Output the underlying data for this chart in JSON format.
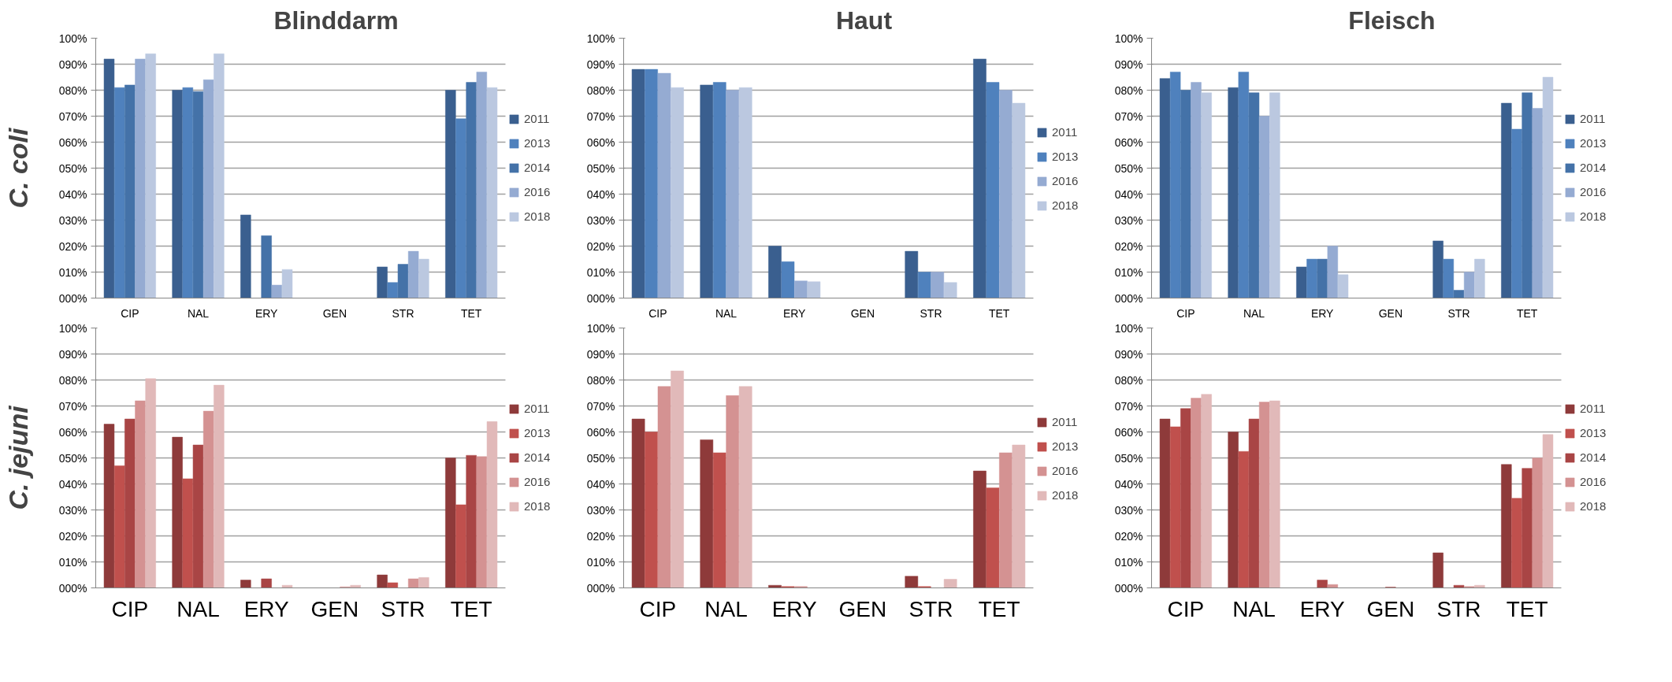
{
  "chart_data": [
    {
      "type": "bar",
      "title": "Blinddarm",
      "ylabel": "C. coli",
      "categories": [
        "CIP",
        "NAL",
        "ERY",
        "GEN",
        "STR",
        "TET"
      ],
      "ylim": [
        0,
        100
      ],
      "yticks": [
        {
          "value": 0,
          "label": "000%"
        },
        {
          "value": 10,
          "label": "010%"
        },
        {
          "value": 20,
          "label": "020%"
        },
        {
          "value": 30,
          "label": "030%"
        },
        {
          "value": 40,
          "label": "040%"
        },
        {
          "value": 50,
          "label": "050%"
        },
        {
          "value": 60,
          "label": "060%"
        },
        {
          "value": 70,
          "label": "070%"
        },
        {
          "value": 80,
          "label": "080%"
        },
        {
          "value": 90,
          "label": "090%"
        },
        {
          "value": 100,
          "label": "100%"
        }
      ],
      "grid": "y",
      "legend": "right",
      "series": [
        {
          "name": "2011",
          "color": "#3a5f8f",
          "values": [
            92,
            80,
            32,
            0,
            12,
            80
          ]
        },
        {
          "name": "2013",
          "color": "#4f81bd",
          "values": [
            81,
            81,
            0,
            0,
            6,
            69
          ]
        },
        {
          "name": "2014",
          "color": "#4472a8",
          "values": [
            82,
            79.5,
            24,
            0,
            13,
            83
          ]
        },
        {
          "name": "2016",
          "color": "#95abd2",
          "values": [
            92,
            84,
            5,
            0,
            18,
            87
          ]
        },
        {
          "name": "2018",
          "color": "#bbc8e0",
          "values": [
            94,
            94,
            11,
            0,
            15,
            81
          ]
        }
      ]
    },
    {
      "type": "bar",
      "title": "Haut",
      "categories": [
        "CIP",
        "NAL",
        "ERY",
        "GEN",
        "STR",
        "TET"
      ],
      "ylim": [
        0,
        100
      ],
      "yticks": [
        {
          "value": 0,
          "label": "000%"
        },
        {
          "value": 10,
          "label": "010%"
        },
        {
          "value": 20,
          "label": "020%"
        },
        {
          "value": 30,
          "label": "030%"
        },
        {
          "value": 40,
          "label": "040%"
        },
        {
          "value": 50,
          "label": "050%"
        },
        {
          "value": 60,
          "label": "060%"
        },
        {
          "value": 70,
          "label": "070%"
        },
        {
          "value": 80,
          "label": "080%"
        },
        {
          "value": 90,
          "label": "090%"
        },
        {
          "value": 100,
          "label": "100%"
        }
      ],
      "grid": "y",
      "legend": "right",
      "series": [
        {
          "name": "2011",
          "color": "#3a5f8f",
          "values": [
            88,
            82,
            20,
            0,
            18,
            92
          ]
        },
        {
          "name": "2013",
          "color": "#4f81bd",
          "values": [
            88,
            83,
            14,
            0,
            10,
            83
          ]
        },
        {
          "name": "2016",
          "color": "#95abd2",
          "values": [
            86.5,
            80,
            6.6,
            0,
            10,
            80
          ]
        },
        {
          "name": "2018",
          "color": "#bbc8e0",
          "values": [
            81,
            81,
            6.3,
            0,
            6,
            75
          ]
        }
      ]
    },
    {
      "type": "bar",
      "title": "Fleisch",
      "categories": [
        "CIP",
        "NAL",
        "ERY",
        "GEN",
        "STR",
        "TET"
      ],
      "ylim": [
        0,
        100
      ],
      "yticks": [
        {
          "value": 0,
          "label": "000%"
        },
        {
          "value": 10,
          "label": "010%"
        },
        {
          "value": 20,
          "label": "020%"
        },
        {
          "value": 30,
          "label": "030%"
        },
        {
          "value": 40,
          "label": "040%"
        },
        {
          "value": 50,
          "label": "050%"
        },
        {
          "value": 60,
          "label": "060%"
        },
        {
          "value": 70,
          "label": "070%"
        },
        {
          "value": 80,
          "label": "080%"
        },
        {
          "value": 90,
          "label": "090%"
        },
        {
          "value": 100,
          "label": "100%"
        }
      ],
      "grid": "y",
      "legend": "right",
      "series": [
        {
          "name": "2011",
          "color": "#3a5f8f",
          "values": [
            84.5,
            81,
            12,
            0,
            22,
            75
          ]
        },
        {
          "name": "2013",
          "color": "#4f81bd",
          "values": [
            87,
            87,
            15,
            0,
            15,
            65
          ]
        },
        {
          "name": "2014",
          "color": "#4472a8",
          "values": [
            80,
            79,
            15,
            0,
            3,
            79
          ]
        },
        {
          "name": "2016",
          "color": "#95abd2",
          "values": [
            83,
            70,
            20,
            0,
            10,
            73
          ]
        },
        {
          "name": "2018",
          "color": "#bbc8e0",
          "values": [
            79,
            79,
            9,
            0,
            15,
            85
          ]
        }
      ]
    },
    {
      "type": "bar",
      "ylabel": "C. jejuni",
      "categories": [
        "CIP",
        "NAL",
        "ERY",
        "GEN",
        "STR",
        "TET"
      ],
      "ylim": [
        0,
        100
      ],
      "yticks": [
        {
          "value": 0,
          "label": "000%"
        },
        {
          "value": 10,
          "label": "010%"
        },
        {
          "value": 20,
          "label": "020%"
        },
        {
          "value": 30,
          "label": "030%"
        },
        {
          "value": 40,
          "label": "040%"
        },
        {
          "value": 50,
          "label": "050%"
        },
        {
          "value": 60,
          "label": "060%"
        },
        {
          "value": 70,
          "label": "070%"
        },
        {
          "value": 80,
          "label": "080%"
        },
        {
          "value": 90,
          "label": "090%"
        },
        {
          "value": 100,
          "label": "100%"
        }
      ],
      "grid": "y",
      "legend": "right",
      "series": [
        {
          "name": "2011",
          "color": "#8e3a3a",
          "values": [
            63,
            58,
            3,
            0,
            5,
            50
          ]
        },
        {
          "name": "2013",
          "color": "#c0504d",
          "values": [
            47,
            42,
            0,
            0,
            2,
            32
          ]
        },
        {
          "name": "2014",
          "color": "#a94545",
          "values": [
            65,
            55,
            3.5,
            0,
            0,
            51
          ]
        },
        {
          "name": "2016",
          "color": "#d49292",
          "values": [
            72,
            68,
            0,
            0.4,
            3.5,
            50.5
          ]
        },
        {
          "name": "2018",
          "color": "#e1b9b9",
          "values": [
            80.5,
            78,
            1,
            1,
            4,
            64
          ]
        }
      ]
    },
    {
      "type": "bar",
      "categories": [
        "CIP",
        "NAL",
        "ERY",
        "GEN",
        "STR",
        "TET"
      ],
      "ylim": [
        0,
        100
      ],
      "yticks": [
        {
          "value": 0,
          "label": "000%"
        },
        {
          "value": 10,
          "label": "010%"
        },
        {
          "value": 20,
          "label": "020%"
        },
        {
          "value": 30,
          "label": "030%"
        },
        {
          "value": 40,
          "label": "040%"
        },
        {
          "value": 50,
          "label": "050%"
        },
        {
          "value": 60,
          "label": "060%"
        },
        {
          "value": 70,
          "label": "070%"
        },
        {
          "value": 80,
          "label": "080%"
        },
        {
          "value": 90,
          "label": "090%"
        },
        {
          "value": 100,
          "label": "100%"
        }
      ],
      "grid": "y",
      "legend": "right",
      "series": [
        {
          "name": "2011",
          "color": "#8e3a3a",
          "values": [
            65,
            57,
            1,
            0,
            4.5,
            45
          ]
        },
        {
          "name": "2013",
          "color": "#c0504d",
          "values": [
            60,
            52,
            0.5,
            0,
            0.5,
            38.5
          ]
        },
        {
          "name": "2016",
          "color": "#d49292",
          "values": [
            77.5,
            74,
            0.5,
            0,
            0,
            52
          ]
        },
        {
          "name": "2018",
          "color": "#e1b9b9",
          "values": [
            83.5,
            77.5,
            0,
            0,
            3.3,
            55
          ]
        }
      ]
    },
    {
      "type": "bar",
      "categories": [
        "CIP",
        "NAL",
        "ERY",
        "GEN",
        "STR",
        "TET"
      ],
      "ylim": [
        0,
        100
      ],
      "yticks": [
        {
          "value": 0,
          "label": "000%"
        },
        {
          "value": 10,
          "label": "010%"
        },
        {
          "value": 20,
          "label": "020%"
        },
        {
          "value": 30,
          "label": "030%"
        },
        {
          "value": 40,
          "label": "040%"
        },
        {
          "value": 50,
          "label": "050%"
        },
        {
          "value": 60,
          "label": "060%"
        },
        {
          "value": 70,
          "label": "070%"
        },
        {
          "value": 80,
          "label": "080%"
        },
        {
          "value": 90,
          "label": "090%"
        },
        {
          "value": 100,
          "label": "100%"
        }
      ],
      "grid": "y",
      "legend": "right",
      "series": [
        {
          "name": "2011",
          "color": "#8e3a3a",
          "values": [
            65,
            60,
            0,
            0,
            13.5,
            47.5
          ]
        },
        {
          "name": "2013",
          "color": "#c0504d",
          "values": [
            62,
            52.5,
            0,
            0,
            0,
            34.5
          ]
        },
        {
          "name": "2014",
          "color": "#a94545",
          "values": [
            69,
            65,
            3,
            0.3,
            1,
            46
          ]
        },
        {
          "name": "2016",
          "color": "#d49292",
          "values": [
            73,
            71.5,
            1.3,
            0,
            0.5,
            50
          ]
        },
        {
          "name": "2018",
          "color": "#e1b9b9",
          "values": [
            74.5,
            72,
            0,
            0,
            1,
            59
          ]
        }
      ]
    }
  ]
}
